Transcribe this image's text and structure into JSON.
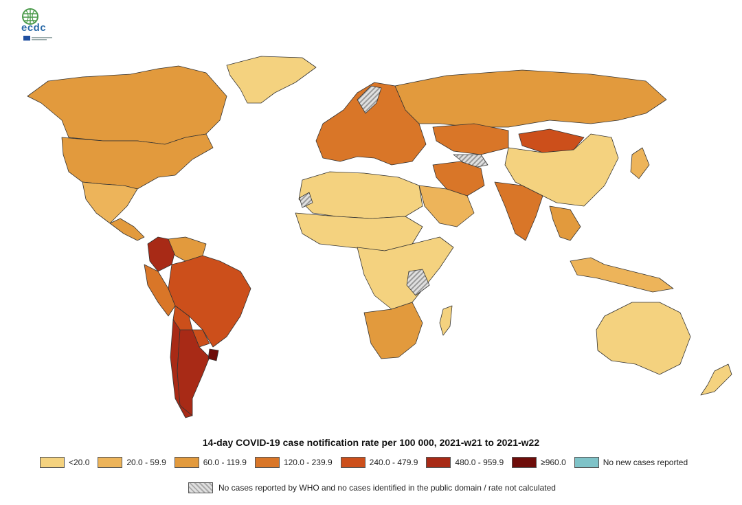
{
  "title": "14-day COVID-19 case notification rate per 100 000, 2021-w21 to 2021-w22",
  "logo": {
    "text": "ecdc",
    "icon": "ecdc-globe-logo"
  },
  "legend": {
    "items": [
      {
        "label": "<20.0",
        "color": "#f4d27f"
      },
      {
        "label": "20.0 - 59.9",
        "color": "#edb45a"
      },
      {
        "label": "60.0 - 119.9",
        "color": "#e29a3d"
      },
      {
        "label": "120.0 - 239.9",
        "color": "#d97628"
      },
      {
        "label": "240.0 - 479.9",
        "color": "#cc4f1b"
      },
      {
        "label": "480.0 - 959.9",
        "color": "#a82a16"
      },
      {
        "label": "≥960.0",
        "color": "#6e0d0a"
      },
      {
        "label": "No new cases reported",
        "color": "#7fc3c8"
      }
    ],
    "not_calculated": "No cases reported by WHO and no cases identified in the public domain / rate not calculated"
  },
  "regions": {
    "canada": "60.0 - 119.9",
    "usa": "60.0 - 119.9",
    "greenland": "<20.0",
    "mexico": "20.0 - 59.9",
    "central_america": "60.0 - 119.9",
    "colombia": "480.0 - 959.9",
    "venezuela": "60.0 - 119.9",
    "brazil": "240.0 - 479.9",
    "peru": "120.0 - 239.9",
    "bolivia": "240.0 - 479.9",
    "paraguay": "240.0 - 479.9",
    "argentina": "480.0 - 959.9",
    "chile": "480.0 - 959.9",
    "uruguay": "≥960.0",
    "europe": "120.0 - 239.9",
    "russia": "60.0 - 119.9",
    "kazakhstan": "120.0 - 239.9",
    "mongolia": "240.0 - 479.9",
    "china": "<20.0",
    "india": "120.0 - 239.9",
    "iran": "120.0 - 239.9",
    "arabia": "20.0 - 59.9",
    "north_africa": "<20.0",
    "sahel_west_africa": "<20.0",
    "central_africa": "<20.0",
    "southern_africa": "60.0 - 119.9",
    "southeast_asia": "60.0 - 119.9",
    "indonesia": "20.0 - 59.9",
    "australia": "<20.0",
    "new_zealand": "<20.0",
    "japan": "20.0 - 59.9",
    "madagascar": "<20.0"
  }
}
